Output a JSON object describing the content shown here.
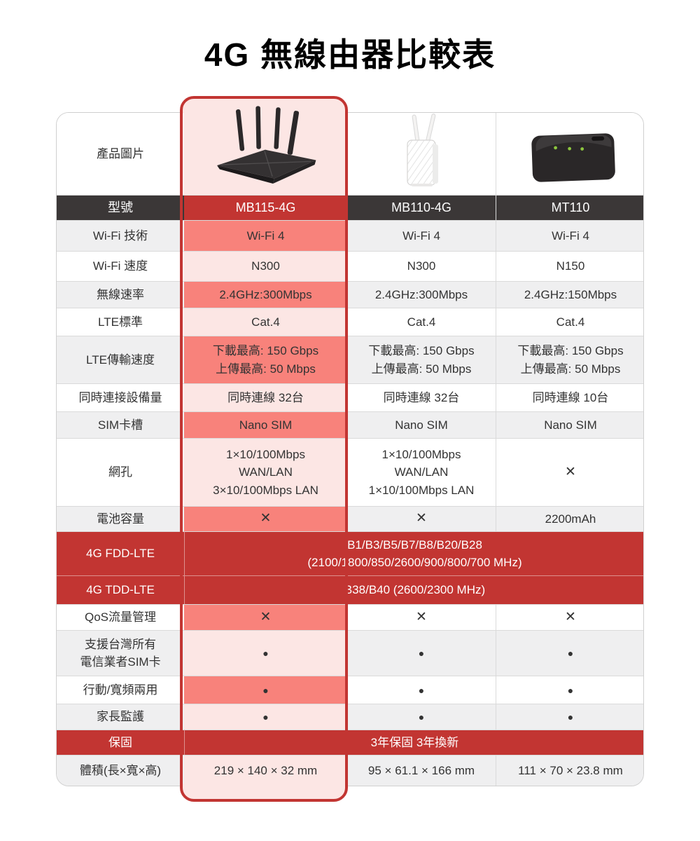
{
  "title": "4G 無線由器比較表",
  "colors": {
    "accent_red": "#c23532",
    "highlight_salmon": "#f8827b",
    "highlight_pink": "#fce6e4",
    "header_dark": "#3b3737",
    "row_gray": "#efeff0",
    "text": "#333333",
    "led_green": "#8dc63f"
  },
  "products": [
    {
      "model": "MB115-4G",
      "image": "black-router-four-antennas"
    },
    {
      "model": "MB110-4G",
      "image": "white-vertical-router-two-antennas"
    },
    {
      "model": "MT110",
      "image": "black-mobile-hotspot"
    }
  ],
  "table": {
    "image_row_label": "產品圖片",
    "model_row_label": "型號",
    "rows": [
      {
        "key": "wifi-tech",
        "label": "Wi-Fi 技術",
        "shade": "g",
        "hl": "salmon",
        "values": [
          "Wi-Fi 4",
          "Wi-Fi 4",
          "Wi-Fi 4"
        ]
      },
      {
        "key": "wifi-speed",
        "label": "Wi-Fi 速度",
        "shade": "w",
        "hl": "pink",
        "values": [
          "N300",
          "N300",
          "N150"
        ]
      },
      {
        "key": "wireless-rate",
        "label": "無線速率",
        "shade": "g",
        "hl": "salmon",
        "values": [
          "2.4GHz:300Mbps",
          "2.4GHz:300Mbps",
          "2.4GHz:150Mbps"
        ]
      },
      {
        "key": "lte-standard",
        "label": "LTE標準",
        "shade": "w",
        "hl": "pink",
        "values": [
          "Cat.4",
          "Cat.4",
          "Cat.4"
        ]
      },
      {
        "key": "lte-speed",
        "label": "LTE傳輸速度",
        "shade": "g",
        "hl": "salmon",
        "values": [
          [
            "下載最高: 150 Gbps",
            "上傳最高: 50 Mbps"
          ],
          [
            "下載最高: 150 Gbps",
            "上傳最高: 50 Mbps"
          ],
          [
            "下載最高: 150 Gbps",
            "上傳最高: 50 Mbps"
          ]
        ]
      },
      {
        "key": "devices",
        "label": "同時連接設備量",
        "shade": "w",
        "hl": "pink",
        "values": [
          "同時連線 32台",
          "同時連線 32台",
          "同時連線 10台"
        ]
      },
      {
        "key": "sim-slot",
        "label": "SIM卡槽",
        "shade": "g",
        "hl": "salmon",
        "values": [
          "Nano SIM",
          "Nano SIM",
          "Nano SIM"
        ]
      },
      {
        "key": "ports",
        "label": "網孔",
        "shade": "w",
        "hl": "pink",
        "values": [
          [
            "1×10/100Mbps",
            "WAN/LAN",
            "3×10/100Mbps LAN"
          ],
          [
            "1×10/100Mbps",
            "WAN/LAN",
            "1×10/100Mbps LAN"
          ],
          "✕"
        ]
      },
      {
        "key": "battery",
        "label": "電池容量",
        "shade": "g",
        "hl": "salmon",
        "values": [
          "✕",
          "✕",
          "2200mAh"
        ]
      },
      {
        "key": "fdd",
        "label": "4G FDD-LTE",
        "type": "band",
        "span": [
          "B1/B3/B5/B7/B8/B20/B28",
          "(2100/1800/850/2600/900/800/700 MHz)"
        ]
      },
      {
        "key": "tdd",
        "label": "4G TDD-LTE",
        "type": "band",
        "sep_light": true,
        "span": [
          "B38/B40 (2600/2300 MHz)"
        ]
      },
      {
        "key": "qos",
        "label": "QoS流量管理",
        "shade": "w",
        "hl": "salmon",
        "values": [
          "✕",
          "✕",
          "✕"
        ]
      },
      {
        "key": "taiwan-sim",
        "label": [
          "支援台灣所有",
          "電信業者SIM卡"
        ],
        "shade": "g",
        "hl": "pink",
        "values": [
          "●",
          "●",
          "●"
        ]
      },
      {
        "key": "dual-mode",
        "label": "行動/寬頻兩用",
        "shade": "w",
        "hl": "salmon",
        "values": [
          "●",
          "●",
          "●"
        ]
      },
      {
        "key": "parental",
        "label": "家長監護",
        "shade": "g",
        "hl": "pink",
        "values": [
          "●",
          "●",
          "●"
        ]
      },
      {
        "key": "warranty",
        "label": "保固",
        "type": "band",
        "span": [
          "3年保固 3年換新"
        ]
      },
      {
        "key": "volume",
        "label": "體積(長×寬×高)",
        "shade": "g",
        "hl": "pink",
        "values": [
          "219 × 140 × 32 mm",
          "95 × 61.1 × 166 mm",
          "111 × 70 × 23.8 mm"
        ]
      }
    ]
  }
}
